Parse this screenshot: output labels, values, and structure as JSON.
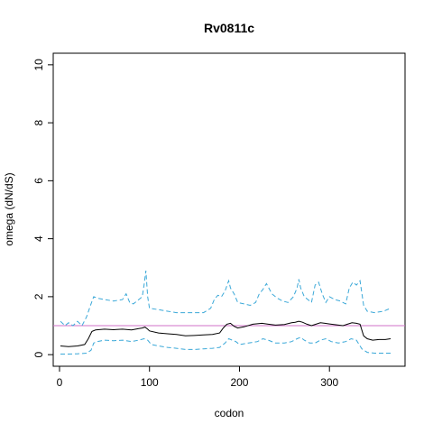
{
  "chart_data": {
    "type": "line",
    "title": "Rv0811c",
    "xlabel": "codon",
    "ylabel": "omega (dN/dS)",
    "xlim": [
      -7,
      384
    ],
    "ylim": [
      -0.4,
      10.4
    ],
    "x_ticks": [
      0,
      100,
      200,
      300
    ],
    "y_ticks": [
      0,
      2,
      4,
      6,
      8,
      10
    ],
    "reference_line": {
      "y": 1,
      "color": "#d070c8"
    },
    "series": [
      {
        "role": "estimate",
        "color": "#000000",
        "style": "solid",
        "x": [
          1,
          10,
          20,
          28,
          32,
          36,
          40,
          50,
          60,
          70,
          80,
          88,
          92,
          95,
          98,
          100,
          110,
          120,
          130,
          140,
          150,
          160,
          170,
          178,
          182,
          186,
          190,
          194,
          198,
          205,
          215,
          225,
          232,
          240,
          250,
          258,
          262,
          266,
          270,
          275,
          280,
          285,
          290,
          295,
          300,
          305,
          310,
          315,
          320,
          325,
          330,
          334,
          338,
          342,
          348,
          355,
          362,
          368
        ],
        "y": [
          0.3,
          0.28,
          0.3,
          0.35,
          0.55,
          0.8,
          0.85,
          0.88,
          0.86,
          0.88,
          0.85,
          0.9,
          0.92,
          0.95,
          0.88,
          0.82,
          0.75,
          0.72,
          0.7,
          0.65,
          0.66,
          0.68,
          0.7,
          0.75,
          0.92,
          1.05,
          1.08,
          0.98,
          0.92,
          0.96,
          1.05,
          1.08,
          1.05,
          1.02,
          1.04,
          1.1,
          1.12,
          1.15,
          1.12,
          1.05,
          1.0,
          1.05,
          1.1,
          1.08,
          1.06,
          1.04,
          1.02,
          1.0,
          1.05,
          1.1,
          1.08,
          1.05,
          0.65,
          0.55,
          0.5,
          0.52,
          0.52,
          0.55
        ]
      },
      {
        "role": "upper bound",
        "color": "#3aa8d8",
        "style": "dashed",
        "x": [
          1,
          6,
          10,
          15,
          20,
          25,
          30,
          35,
          38,
          42,
          50,
          60,
          70,
          74,
          78,
          82,
          88,
          92,
          94,
          96,
          98,
          100,
          110,
          120,
          130,
          140,
          150,
          160,
          168,
          172,
          176,
          180,
          184,
          188,
          190,
          194,
          198,
          205,
          212,
          218,
          222,
          226,
          230,
          236,
          242,
          248,
          254,
          260,
          264,
          266,
          268,
          272,
          276,
          280,
          284,
          288,
          292,
          296,
          300,
          306,
          312,
          318,
          322,
          326,
          330,
          334,
          338,
          342,
          350,
          360,
          368
        ],
        "y": [
          1.15,
          1.0,
          1.1,
          1.0,
          1.15,
          1.0,
          1.3,
          1.75,
          2.0,
          1.95,
          1.9,
          1.85,
          1.9,
          2.1,
          1.8,
          1.75,
          1.9,
          2.0,
          2.4,
          2.9,
          2.0,
          1.6,
          1.55,
          1.5,
          1.45,
          1.45,
          1.45,
          1.45,
          1.6,
          1.9,
          2.05,
          2.0,
          2.2,
          2.55,
          2.3,
          2.1,
          1.8,
          1.75,
          1.7,
          1.8,
          2.1,
          2.25,
          2.45,
          2.1,
          1.95,
          1.85,
          1.8,
          2.0,
          2.3,
          2.6,
          2.3,
          2.0,
          1.9,
          1.8,
          2.4,
          2.5,
          2.1,
          1.8,
          2.0,
          1.9,
          1.85,
          1.75,
          2.3,
          2.5,
          2.4,
          2.55,
          1.7,
          1.5,
          1.45,
          1.5,
          1.6
        ]
      },
      {
        "role": "lower bound",
        "color": "#3aa8d8",
        "style": "dashed",
        "x": [
          1,
          10,
          20,
          30,
          35,
          38,
          42,
          50,
          60,
          70,
          80,
          88,
          94,
          98,
          102,
          110,
          120,
          130,
          140,
          150,
          160,
          170,
          178,
          184,
          188,
          192,
          196,
          200,
          210,
          220,
          226,
          232,
          240,
          250,
          258,
          264,
          268,
          272,
          278,
          284,
          290,
          296,
          302,
          310,
          318,
          324,
          330,
          336,
          342,
          350,
          360,
          368
        ],
        "y": [
          0.02,
          0.02,
          0.03,
          0.05,
          0.15,
          0.4,
          0.45,
          0.5,
          0.48,
          0.5,
          0.45,
          0.5,
          0.55,
          0.5,
          0.35,
          0.3,
          0.25,
          0.22,
          0.18,
          0.18,
          0.2,
          0.22,
          0.25,
          0.4,
          0.55,
          0.5,
          0.45,
          0.35,
          0.4,
          0.45,
          0.55,
          0.5,
          0.4,
          0.4,
          0.45,
          0.55,
          0.6,
          0.5,
          0.4,
          0.4,
          0.5,
          0.55,
          0.45,
          0.4,
          0.45,
          0.55,
          0.5,
          0.2,
          0.08,
          0.05,
          0.05,
          0.05
        ]
      }
    ]
  }
}
